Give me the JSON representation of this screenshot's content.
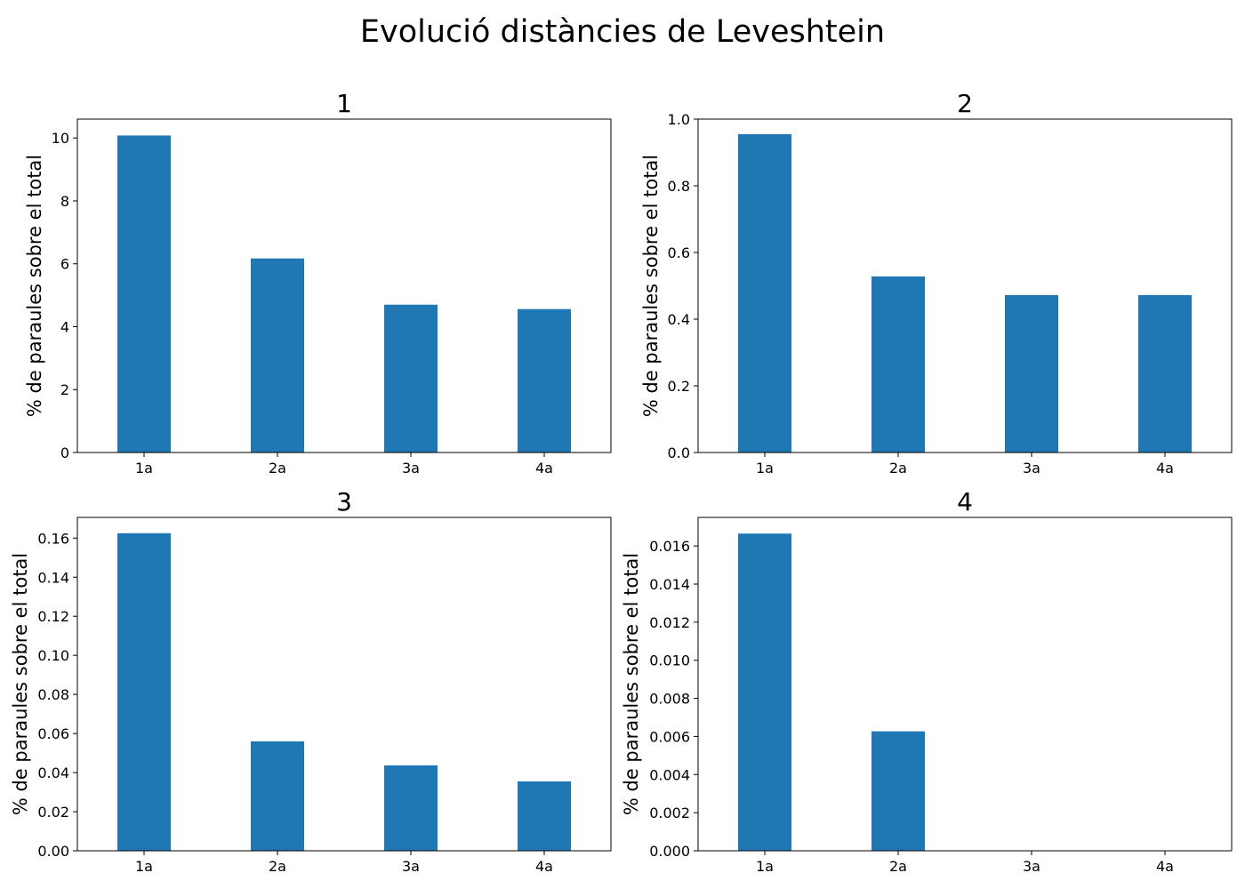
{
  "figure": {
    "title": "Evolució distàncies de Leveshtein",
    "bar_color": "#1f77b4"
  },
  "chart_data": [
    {
      "type": "bar",
      "title": "1",
      "categories": [
        "1a",
        "2a",
        "3a",
        "4a"
      ],
      "values": [
        10.08,
        6.17,
        4.7,
        4.56
      ],
      "ylabel": "% de paraules sobre el total",
      "ylim": [
        0,
        10.6
      ],
      "yticks": [
        0,
        2,
        4,
        6,
        8,
        10
      ],
      "ytick_labels": [
        "0",
        "2",
        "4",
        "6",
        "8",
        "10"
      ],
      "grid": false
    },
    {
      "type": "bar",
      "title": "2",
      "categories": [
        "1a",
        "2a",
        "3a",
        "4a"
      ],
      "values": [
        0.955,
        0.528,
        0.472,
        0.472
      ],
      "ylabel": "% de paraules sobre el total",
      "ylim": [
        0,
        1.0
      ],
      "yticks": [
        0,
        0.2,
        0.4,
        0.6,
        0.8,
        1.0
      ],
      "ytick_labels": [
        "0.0",
        "0.2",
        "0.4",
        "0.6",
        "0.8",
        "1.0"
      ],
      "grid": false
    },
    {
      "type": "bar",
      "title": "3",
      "categories": [
        "1a",
        "2a",
        "3a",
        "4a"
      ],
      "values": [
        0.1625,
        0.056,
        0.0437,
        0.0355
      ],
      "ylabel": "% de paraules sobre el total",
      "ylim": [
        0,
        0.1706
      ],
      "yticks": [
        0,
        0.02,
        0.04,
        0.06,
        0.08,
        0.1,
        0.12,
        0.14,
        0.16
      ],
      "ytick_labels": [
        "0.00",
        "0.02",
        "0.04",
        "0.06",
        "0.08",
        "0.10",
        "0.12",
        "0.14",
        "0.16"
      ],
      "grid": false
    },
    {
      "type": "bar",
      "title": "4",
      "categories": [
        "1a",
        "2a",
        "3a",
        "4a"
      ],
      "values": [
        0.01665,
        0.00627,
        0,
        0
      ],
      "ylabel": "% de paraules sobre el total",
      "ylim": [
        0,
        0.0175
      ],
      "yticks": [
        0,
        0.002,
        0.004,
        0.006,
        0.008,
        0.01,
        0.012,
        0.014,
        0.016
      ],
      "ytick_labels": [
        "0.000",
        "0.002",
        "0.004",
        "0.006",
        "0.008",
        "0.010",
        "0.012",
        "0.014",
        "0.016"
      ],
      "grid": false
    }
  ]
}
